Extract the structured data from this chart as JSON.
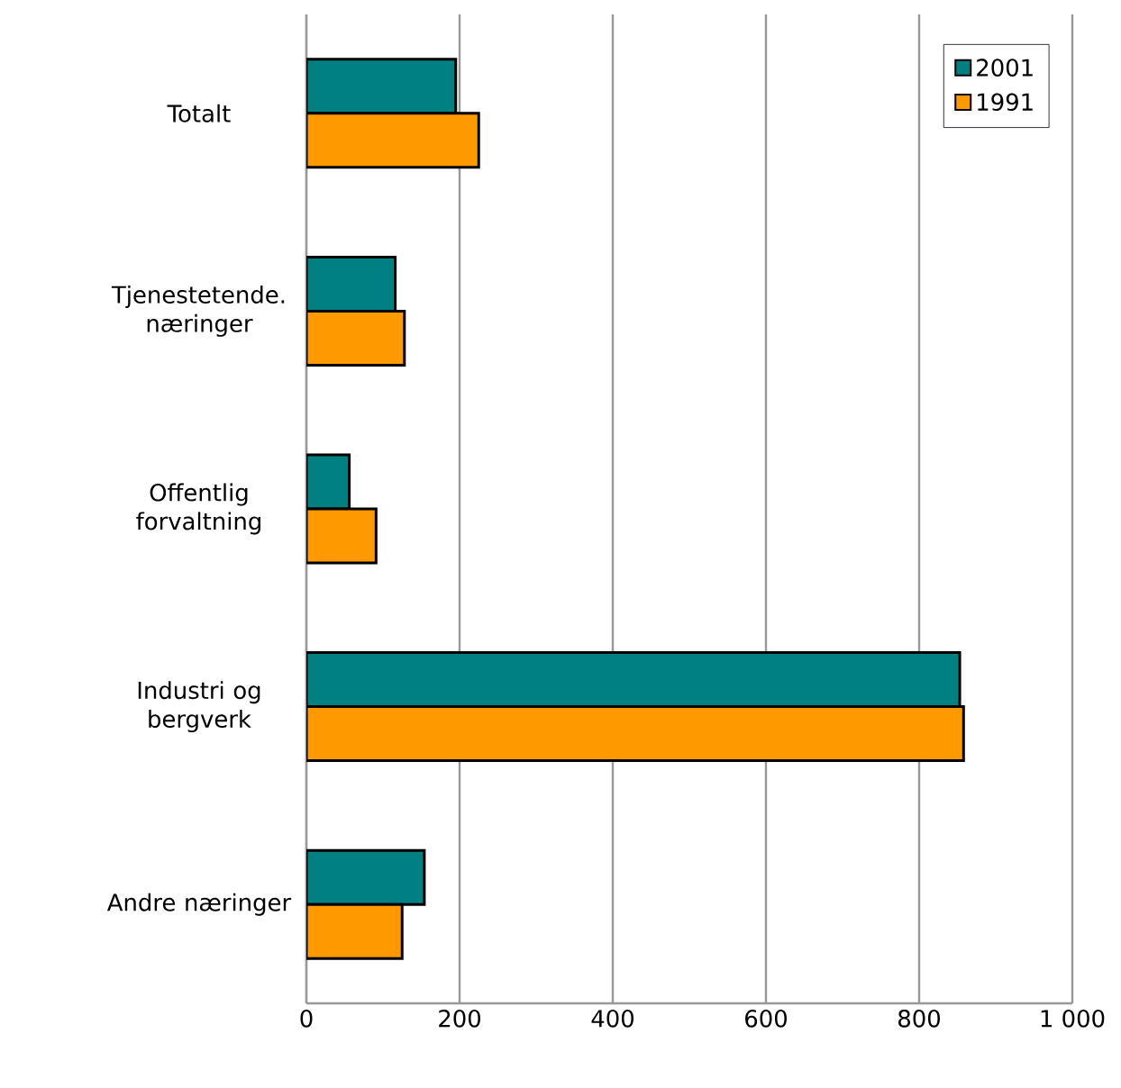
{
  "chart_data": {
    "type": "bar",
    "orientation": "horizontal",
    "categories": [
      "Totalt",
      "Tjenestetende. næringer",
      "Offentlig forvaltning",
      "Industri og bergverk",
      "Andre næringer"
    ],
    "series": [
      {
        "name": "2001",
        "color": "#008080",
        "values": [
          195,
          116,
          56,
          853,
          154
        ]
      },
      {
        "name": "1991",
        "color": "#ff9900",
        "values": [
          225,
          128,
          91,
          858,
          125
        ]
      }
    ],
    "xlim": [
      0,
      1000
    ],
    "xticks": [
      0,
      200,
      400,
      600,
      800,
      {
        "value": 1000,
        "label": "1 000"
      }
    ],
    "grid": "x",
    "legend": "top right"
  }
}
